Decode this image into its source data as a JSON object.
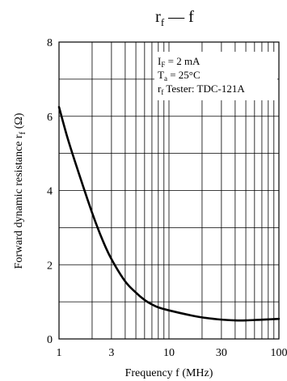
{
  "chart_data": {
    "type": "line",
    "title": {
      "main": "r",
      "sub": "f",
      "rest": " — f"
    },
    "xlabel": "Frequency  f  (MHz)",
    "ylabel": "Forward dynamic resistance  r",
    "ylabel_sub": "f",
    "ylabel_unit": "  (Ω)",
    "x_scale": "log",
    "xlim": [
      1,
      100
    ],
    "ylim": [
      0,
      8
    ],
    "x_ticks": [
      {
        "value": 1,
        "label": "1"
      },
      {
        "value": 3,
        "label": "3"
      },
      {
        "value": 10,
        "label": "10"
      },
      {
        "value": 30,
        "label": "30"
      },
      {
        "value": 100,
        "label": "100"
      }
    ],
    "y_ticks": [
      {
        "value": 0,
        "label": "0"
      },
      {
        "value": 2,
        "label": "2"
      },
      {
        "value": 4,
        "label": "4"
      },
      {
        "value": 6,
        "label": "6"
      },
      {
        "value": 8,
        "label": "8"
      }
    ],
    "x_grid": [
      1,
      2,
      3,
      4,
      5,
      6,
      7,
      8,
      9,
      10,
      20,
      30,
      40,
      50,
      60,
      70,
      80,
      90,
      100
    ],
    "y_grid": [
      0,
      1,
      2,
      3,
      4,
      5,
      6,
      7,
      8
    ],
    "grid": true,
    "annotations": [
      {
        "main": "I",
        "sub": "F",
        "rest": " = 2 mA"
      },
      {
        "main": "T",
        "sub": "a",
        "rest": " = 25°C"
      },
      {
        "main": "r",
        "sub": "f",
        "rest": " Tester: TDC-121A"
      }
    ],
    "annotation_placement": "top-right",
    "series": [
      {
        "x": [
          1,
          1.2,
          1.5,
          2,
          2.5,
          3,
          4,
          5,
          6,
          7,
          8,
          10,
          15,
          20,
          30,
          40,
          50,
          70,
          100
        ],
        "y": [
          6.25,
          5.4,
          4.5,
          3.4,
          2.65,
          2.15,
          1.55,
          1.25,
          1.05,
          0.93,
          0.85,
          0.77,
          0.65,
          0.58,
          0.52,
          0.5,
          0.5,
          0.52,
          0.54
        ]
      }
    ]
  }
}
